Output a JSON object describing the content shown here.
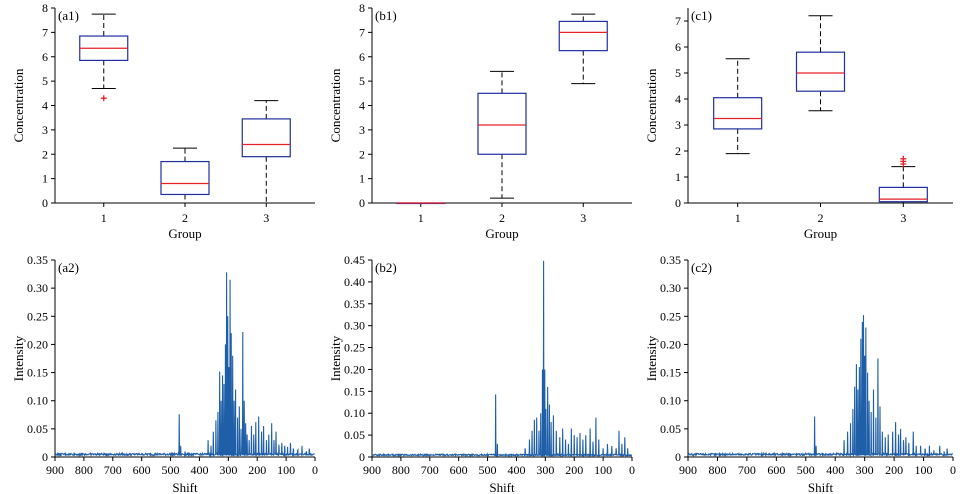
{
  "colors": {
    "box": "#1f2f9f",
    "median": "#e8202a",
    "outlier": "#e8202a",
    "whisker": "#000000",
    "spectrum": "#1f5fa8",
    "axis": "#000000"
  },
  "chart_data": [
    {
      "id": "a1",
      "type": "box",
      "panel_label": "(a1)",
      "xlabel": "Group",
      "ylabel": "Concentration",
      "categories": [
        "1",
        "2",
        "3"
      ],
      "ylim": [
        0,
        8
      ],
      "yticks": [
        0,
        1,
        2,
        3,
        4,
        5,
        6,
        7,
        8
      ],
      "boxes": [
        {
          "group": "1",
          "whisker_low": 4.7,
          "q1": 5.85,
          "median": 6.35,
          "q3": 6.85,
          "whisker_high": 7.75,
          "outliers": [
            4.3
          ]
        },
        {
          "group": "2",
          "whisker_low": 0.0,
          "q1": 0.35,
          "median": 0.8,
          "q3": 1.7,
          "whisker_high": 2.25,
          "outliers": []
        },
        {
          "group": "3",
          "whisker_low": 0.0,
          "q1": 1.9,
          "median": 2.4,
          "q3": 3.45,
          "whisker_high": 4.2,
          "outliers": []
        }
      ]
    },
    {
      "id": "b1",
      "type": "box",
      "panel_label": "(b1)",
      "xlabel": "Group",
      "ylabel": "Concentration",
      "categories": [
        "1",
        "2",
        "3"
      ],
      "ylim": [
        0,
        8
      ],
      "yticks": [
        0,
        1,
        2,
        3,
        4,
        5,
        6,
        7,
        8
      ],
      "boxes": [
        {
          "group": "1",
          "whisker_low": 0.0,
          "q1": 0.0,
          "median": 0.0,
          "q3": 0.0,
          "whisker_high": 0.0,
          "outliers": []
        },
        {
          "group": "2",
          "whisker_low": 0.2,
          "q1": 2.0,
          "median": 3.2,
          "q3": 4.5,
          "whisker_high": 5.4,
          "outliers": []
        },
        {
          "group": "3",
          "whisker_low": 4.9,
          "q1": 6.25,
          "median": 7.0,
          "q3": 7.45,
          "whisker_high": 7.75,
          "outliers": []
        }
      ]
    },
    {
      "id": "c1",
      "type": "box",
      "panel_label": "(c1)",
      "xlabel": "Group",
      "ylabel": "Concentration",
      "categories": [
        "1",
        "2",
        "3"
      ],
      "ylim": [
        0,
        7.5
      ],
      "yticks": [
        0,
        1,
        2,
        3,
        4,
        5,
        6,
        7
      ],
      "boxes": [
        {
          "group": "1",
          "whisker_low": 1.9,
          "q1": 2.85,
          "median": 3.25,
          "q3": 4.05,
          "whisker_high": 5.55,
          "outliers": []
        },
        {
          "group": "2",
          "whisker_low": 3.55,
          "q1": 4.3,
          "median": 5.0,
          "q3": 5.8,
          "whisker_high": 7.2,
          "outliers": []
        },
        {
          "group": "3",
          "whisker_low": 0.0,
          "q1": 0.05,
          "median": 0.15,
          "q3": 0.6,
          "whisker_high": 1.4,
          "outliers": [
            1.5,
            1.6,
            1.7
          ]
        }
      ]
    },
    {
      "id": "a2",
      "type": "line",
      "panel_label": "(a2)",
      "xlabel": "Shift",
      "ylabel": "Intensity",
      "xlim": [
        900,
        0
      ],
      "xticks": [
        900,
        800,
        700,
        600,
        500,
        400,
        300,
        200,
        100,
        0
      ],
      "ylim": [
        0,
        0.35
      ],
      "yticks": [
        "0",
        "0.05",
        "0.10",
        "0.15",
        "0.20",
        "0.25",
        "0.30",
        "0.35"
      ],
      "baseline": 0.003,
      "peaks": [
        [
          880,
          0.004
        ],
        [
          810,
          0.005
        ],
        [
          720,
          0.004
        ],
        [
          650,
          0.004
        ],
        [
          560,
          0.003
        ],
        [
          500,
          0.006
        ],
        [
          470,
          0.076
        ],
        [
          465,
          0.02
        ],
        [
          450,
          0.01
        ],
        [
          370,
          0.03
        ],
        [
          360,
          0.02
        ],
        [
          352,
          0.045
        ],
        [
          343,
          0.065
        ],
        [
          336,
          0.08
        ],
        [
          330,
          0.152
        ],
        [
          325,
          0.1
        ],
        [
          320,
          0.145
        ],
        [
          315,
          0.13
        ],
        [
          310,
          0.2
        ],
        [
          306,
          0.328
        ],
        [
          302,
          0.25
        ],
        [
          298,
          0.16
        ],
        [
          294,
          0.315
        ],
        [
          290,
          0.22
        ],
        [
          285,
          0.18
        ],
        [
          280,
          0.1
        ],
        [
          275,
          0.12
        ],
        [
          268,
          0.07
        ],
        [
          262,
          0.09
        ],
        [
          256,
          0.05
        ],
        [
          250,
          0.222
        ],
        [
          245,
          0.1
        ],
        [
          240,
          0.06
        ],
        [
          235,
          0.04
        ],
        [
          228,
          0.03
        ],
        [
          220,
          0.055
        ],
        [
          212,
          0.04
        ],
        [
          205,
          0.062
        ],
        [
          195,
          0.072
        ],
        [
          185,
          0.045
        ],
        [
          178,
          0.055
        ],
        [
          168,
          0.03
        ],
        [
          160,
          0.04
        ],
        [
          150,
          0.06
        ],
        [
          142,
          0.03
        ],
        [
          135,
          0.045
        ],
        [
          125,
          0.022
        ],
        [
          115,
          0.025
        ],
        [
          105,
          0.02
        ],
        [
          95,
          0.018
        ],
        [
          85,
          0.025
        ],
        [
          75,
          0.015
        ],
        [
          60,
          0.012
        ],
        [
          45,
          0.02
        ],
        [
          30,
          0.01
        ],
        [
          20,
          0.015
        ]
      ]
    },
    {
      "id": "b2",
      "type": "line",
      "panel_label": "(b2)",
      "xlabel": "Shift",
      "ylabel": "Intensity",
      "xlim": [
        900,
        0
      ],
      "xticks": [
        900,
        800,
        700,
        600,
        500,
        400,
        300,
        200,
        100,
        0
      ],
      "ylim": [
        0,
        0.45
      ],
      "yticks": [
        "0",
        "0.05",
        "0.10",
        "0.15",
        "0.20",
        "0.25",
        "0.30",
        "0.35",
        "0.40",
        "0.45"
      ],
      "baseline": 0.003,
      "peaks": [
        [
          880,
          0.004
        ],
        [
          810,
          0.005
        ],
        [
          720,
          0.004
        ],
        [
          650,
          0.004
        ],
        [
          560,
          0.003
        ],
        [
          500,
          0.006
        ],
        [
          472,
          0.143
        ],
        [
          466,
          0.03
        ],
        [
          370,
          0.02
        ],
        [
          355,
          0.04
        ],
        [
          346,
          0.06
        ],
        [
          338,
          0.085
        ],
        [
          330,
          0.09
        ],
        [
          322,
          0.06
        ],
        [
          316,
          0.1
        ],
        [
          310,
          0.2
        ],
        [
          306,
          0.448
        ],
        [
          302,
          0.2
        ],
        [
          298,
          0.11
        ],
        [
          292,
          0.16
        ],
        [
          286,
          0.12
        ],
        [
          280,
          0.08
        ],
        [
          272,
          0.095
        ],
        [
          262,
          0.06
        ],
        [
          250,
          0.045
        ],
        [
          240,
          0.065
        ],
        [
          230,
          0.04
        ],
        [
          220,
          0.03
        ],
        [
          210,
          0.065
        ],
        [
          200,
          0.05
        ],
        [
          190,
          0.045
        ],
        [
          180,
          0.055
        ],
        [
          170,
          0.04
        ],
        [
          160,
          0.05
        ],
        [
          145,
          0.065
        ],
        [
          135,
          0.035
        ],
        [
          125,
          0.09
        ],
        [
          115,
          0.04
        ],
        [
          100,
          0.02
        ],
        [
          85,
          0.03
        ],
        [
          70,
          0.025
        ],
        [
          55,
          0.02
        ],
        [
          45,
          0.06
        ],
        [
          35,
          0.03
        ],
        [
          25,
          0.045
        ],
        [
          15,
          0.02
        ]
      ]
    },
    {
      "id": "c2",
      "type": "line",
      "panel_label": "(c2)",
      "xlabel": "Shift",
      "ylabel": "Intensity",
      "xlim": [
        900,
        0
      ],
      "xticks": [
        900,
        800,
        700,
        600,
        500,
        400,
        300,
        200,
        100,
        0
      ],
      "ylim": [
        0,
        0.35
      ],
      "yticks": [
        "0",
        "0.05",
        "0.10",
        "0.15",
        "0.20",
        "0.25",
        "0.30",
        "0.35"
      ],
      "baseline": 0.003,
      "peaks": [
        [
          880,
          0.004
        ],
        [
          810,
          0.005
        ],
        [
          720,
          0.004
        ],
        [
          650,
          0.004
        ],
        [
          560,
          0.003
        ],
        [
          500,
          0.006
        ],
        [
          470,
          0.072
        ],
        [
          465,
          0.02
        ],
        [
          370,
          0.03
        ],
        [
          358,
          0.045
        ],
        [
          348,
          0.06
        ],
        [
          340,
          0.085
        ],
        [
          334,
          0.125
        ],
        [
          328,
          0.165
        ],
        [
          323,
          0.12
        ],
        [
          318,
          0.16
        ],
        [
          313,
          0.21
        ],
        [
          308,
          0.24
        ],
        [
          304,
          0.252
        ],
        [
          300,
          0.18
        ],
        [
          296,
          0.23
        ],
        [
          290,
          0.15
        ],
        [
          285,
          0.1
        ],
        [
          278,
          0.08
        ],
        [
          270,
          0.12
        ],
        [
          262,
          0.07
        ],
        [
          255,
          0.175
        ],
        [
          248,
          0.09
        ],
        [
          240,
          0.045
        ],
        [
          230,
          0.035
        ],
        [
          220,
          0.04
        ],
        [
          205,
          0.045
        ],
        [
          195,
          0.062
        ],
        [
          185,
          0.04
        ],
        [
          178,
          0.05
        ],
        [
          168,
          0.03
        ],
        [
          160,
          0.035
        ],
        [
          150,
          0.025
        ],
        [
          135,
          0.045
        ],
        [
          125,
          0.02
        ],
        [
          110,
          0.02
        ],
        [
          95,
          0.015
        ],
        [
          80,
          0.02
        ],
        [
          65,
          0.012
        ],
        [
          45,
          0.02
        ],
        [
          30,
          0.01
        ],
        [
          20,
          0.015
        ]
      ]
    }
  ]
}
